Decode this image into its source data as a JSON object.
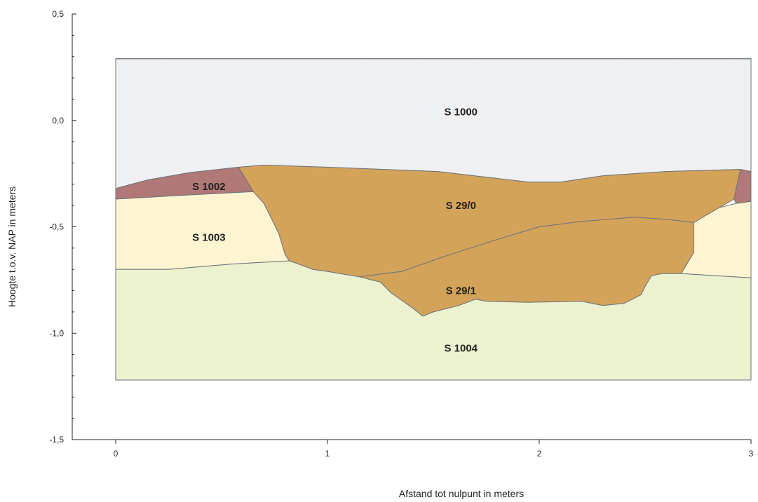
{
  "chart_data": {
    "type": "cross-section",
    "xlabel": "Afstand tot nulpunt in meters",
    "ylabel": "Hoogte t.o.v. NAP in meters",
    "xlim": [
      0,
      3
    ],
    "ylim": [
      -1.5,
      0.5
    ],
    "x_ticks": [
      {
        "value": 0,
        "label": "0"
      },
      {
        "value": 1,
        "label": "1"
      },
      {
        "value": 2,
        "label": "2"
      },
      {
        "value": 3,
        "label": "3"
      }
    ],
    "y_ticks": [
      {
        "value": 0.5,
        "label": "0,5"
      },
      {
        "value": 0.0,
        "label": "0,0"
      },
      {
        "value": -0.5,
        "label": "-0,5"
      },
      {
        "value": -1.0,
        "label": "-1,0"
      },
      {
        "value": -1.5,
        "label": "-1,5"
      }
    ],
    "profile_extent": {
      "x": [
        0,
        3
      ],
      "top": 0.29,
      "bottom": -1.22
    },
    "layers": [
      {
        "label": "S 1000",
        "color": "#eff0f2",
        "label_at": [
          1.63,
          0.04
        ],
        "polygon": [
          [
            0,
            0.29
          ],
          [
            3,
            0.29
          ],
          [
            3,
            -0.24
          ],
          [
            2.95,
            -0.23
          ],
          [
            2.6,
            -0.24
          ],
          [
            2.3,
            -0.26
          ],
          [
            2.1,
            -0.29
          ],
          [
            1.95,
            -0.29
          ],
          [
            1.52,
            -0.24
          ],
          [
            1.0,
            -0.22
          ],
          [
            0.7,
            -0.21
          ],
          [
            0.58,
            -0.22
          ],
          [
            0.35,
            -0.245
          ],
          [
            0.15,
            -0.28
          ],
          [
            0,
            -0.32
          ]
        ]
      },
      {
        "label": "S 1002",
        "color": "#b07876",
        "label_at": [
          0.44,
          -0.31
        ],
        "polygon": [
          [
            0,
            -0.32
          ],
          [
            0.15,
            -0.28
          ],
          [
            0.35,
            -0.245
          ],
          [
            0.58,
            -0.22
          ],
          [
            0.65,
            -0.335
          ],
          [
            0.35,
            -0.35
          ],
          [
            0,
            -0.37
          ]
        ]
      },
      {
        "label": "S 1003",
        "color": "#fdf5d2",
        "label_at": [
          0.44,
          -0.55
        ],
        "polygon": [
          [
            0,
            -0.37
          ],
          [
            0.35,
            -0.35
          ],
          [
            0.65,
            -0.335
          ],
          [
            0.7,
            -0.39
          ],
          [
            0.77,
            -0.53
          ],
          [
            0.8,
            -0.63
          ],
          [
            0.82,
            -0.66
          ],
          [
            0.55,
            -0.675
          ],
          [
            0.25,
            -0.7
          ],
          [
            0,
            -0.7
          ]
        ]
      },
      {
        "label": "S 1003",
        "color": "#fdf5d2",
        "label_at": null,
        "polygon": [
          [
            3,
            -0.38
          ],
          [
            2.93,
            -0.39
          ],
          [
            2.85,
            -0.41
          ],
          [
            2.78,
            -0.45
          ],
          [
            2.73,
            -0.48
          ],
          [
            2.73,
            -0.62
          ],
          [
            2.7,
            -0.67
          ],
          [
            2.67,
            -0.72
          ],
          [
            3,
            -0.74
          ]
        ]
      },
      {
        "label": "S 29/0",
        "color": "#d4a35a",
        "label_at": [
          1.63,
          -0.4
        ],
        "polygon": [
          [
            0.58,
            -0.22
          ],
          [
            0.7,
            -0.21
          ],
          [
            1.0,
            -0.22
          ],
          [
            1.52,
            -0.24
          ],
          [
            1.95,
            -0.29
          ],
          [
            2.1,
            -0.29
          ],
          [
            2.3,
            -0.26
          ],
          [
            2.6,
            -0.24
          ],
          [
            2.95,
            -0.23
          ],
          [
            2.92,
            -0.37
          ],
          [
            2.85,
            -0.41
          ],
          [
            2.78,
            -0.45
          ],
          [
            2.73,
            -0.48
          ],
          [
            2.6,
            -0.465
          ],
          [
            2.45,
            -0.455
          ],
          [
            2.2,
            -0.475
          ],
          [
            2.0,
            -0.5
          ],
          [
            1.8,
            -0.56
          ],
          [
            1.55,
            -0.64
          ],
          [
            1.35,
            -0.71
          ],
          [
            1.15,
            -0.735
          ],
          [
            1.0,
            -0.71
          ],
          [
            0.93,
            -0.7
          ],
          [
            0.85,
            -0.67
          ],
          [
            0.82,
            -0.66
          ],
          [
            0.8,
            -0.63
          ],
          [
            0.77,
            -0.53
          ],
          [
            0.7,
            -0.39
          ],
          [
            0.65,
            -0.335
          ]
        ]
      },
      {
        "label": "S 29/1",
        "color": "#d4a35a",
        "label_at": [
          1.63,
          -0.8
        ],
        "polygon": [
          [
            1.15,
            -0.735
          ],
          [
            1.35,
            -0.71
          ],
          [
            1.55,
            -0.64
          ],
          [
            1.8,
            -0.56
          ],
          [
            2.0,
            -0.5
          ],
          [
            2.2,
            -0.475
          ],
          [
            2.45,
            -0.455
          ],
          [
            2.6,
            -0.465
          ],
          [
            2.73,
            -0.48
          ],
          [
            2.73,
            -0.62
          ],
          [
            2.7,
            -0.67
          ],
          [
            2.67,
            -0.72
          ],
          [
            2.58,
            -0.72
          ],
          [
            2.53,
            -0.73
          ],
          [
            2.5,
            -0.78
          ],
          [
            2.48,
            -0.82
          ],
          [
            2.4,
            -0.86
          ],
          [
            2.3,
            -0.87
          ],
          [
            2.2,
            -0.85
          ],
          [
            1.95,
            -0.855
          ],
          [
            1.75,
            -0.85
          ],
          [
            1.7,
            -0.84
          ],
          [
            1.62,
            -0.87
          ],
          [
            1.5,
            -0.9
          ],
          [
            1.45,
            -0.92
          ],
          [
            1.4,
            -0.88
          ],
          [
            1.3,
            -0.81
          ],
          [
            1.25,
            -0.76
          ]
        ]
      },
      {
        "label": "S 1004",
        "color": "#ecf2cf",
        "label_at": [
          1.63,
          -1.07
        ],
        "polygon": [
          [
            0,
            -0.7
          ],
          [
            0.25,
            -0.7
          ],
          [
            0.55,
            -0.675
          ],
          [
            0.82,
            -0.66
          ],
          [
            0.85,
            -0.67
          ],
          [
            0.93,
            -0.7
          ],
          [
            1.0,
            -0.71
          ],
          [
            1.15,
            -0.735
          ],
          [
            1.25,
            -0.76
          ],
          [
            1.3,
            -0.81
          ],
          [
            1.4,
            -0.88
          ],
          [
            1.45,
            -0.92
          ],
          [
            1.5,
            -0.9
          ],
          [
            1.62,
            -0.87
          ],
          [
            1.7,
            -0.84
          ],
          [
            1.75,
            -0.85
          ],
          [
            1.95,
            -0.855
          ],
          [
            2.2,
            -0.85
          ],
          [
            2.3,
            -0.87
          ],
          [
            2.4,
            -0.86
          ],
          [
            2.48,
            -0.82
          ],
          [
            2.5,
            -0.78
          ],
          [
            2.53,
            -0.73
          ],
          [
            2.58,
            -0.72
          ],
          [
            2.67,
            -0.72
          ],
          [
            3,
            -0.74
          ],
          [
            3,
            -1.22
          ],
          [
            0,
            -1.22
          ]
        ]
      },
      {
        "label": "S 1002",
        "color": "#b07876",
        "label_at": null,
        "polygon": [
          [
            2.95,
            -0.23
          ],
          [
            3,
            -0.24
          ],
          [
            3,
            -0.38
          ],
          [
            2.93,
            -0.39
          ],
          [
            2.92,
            -0.37
          ]
        ]
      }
    ]
  }
}
